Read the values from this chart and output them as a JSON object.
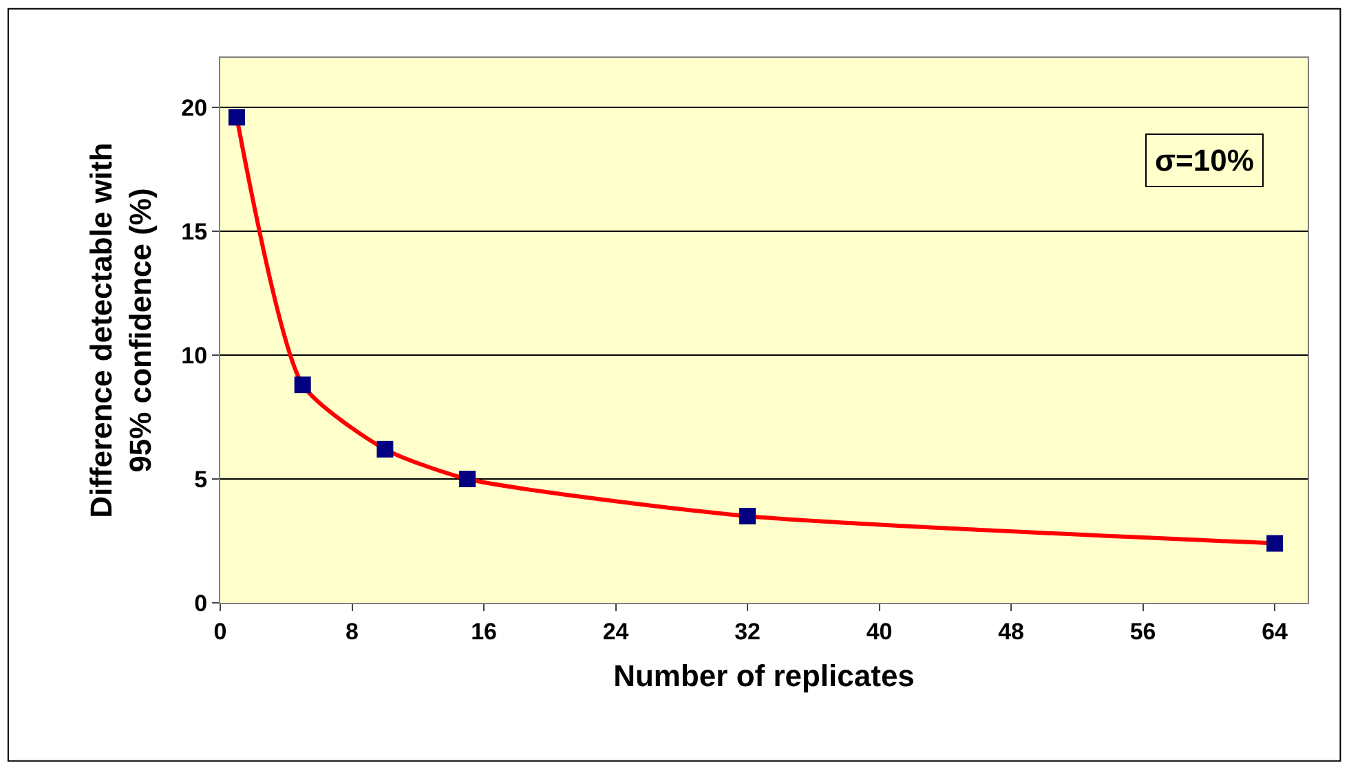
{
  "chart_data": {
    "type": "line",
    "xlabel": "Number of replicates",
    "ylabel": "Difference detectable with\n95% confidence (%)",
    "x": [
      1,
      5,
      10,
      15,
      32,
      64
    ],
    "series": [
      {
        "color": "#ff0000",
        "values": [
          19.6,
          8.8,
          6.2,
          5.0,
          3.5,
          2.4
        ]
      }
    ],
    "xlim": [
      0,
      66
    ],
    "xticks": [
      0,
      8,
      16,
      24,
      32,
      40,
      48,
      56,
      64
    ],
    "ylim": [
      0,
      22
    ],
    "yticks": [
      0,
      5,
      10,
      15,
      20
    ],
    "grid": "y",
    "marker": "square",
    "line_style": "solid",
    "annotations": [
      "σ=10%"
    ]
  }
}
